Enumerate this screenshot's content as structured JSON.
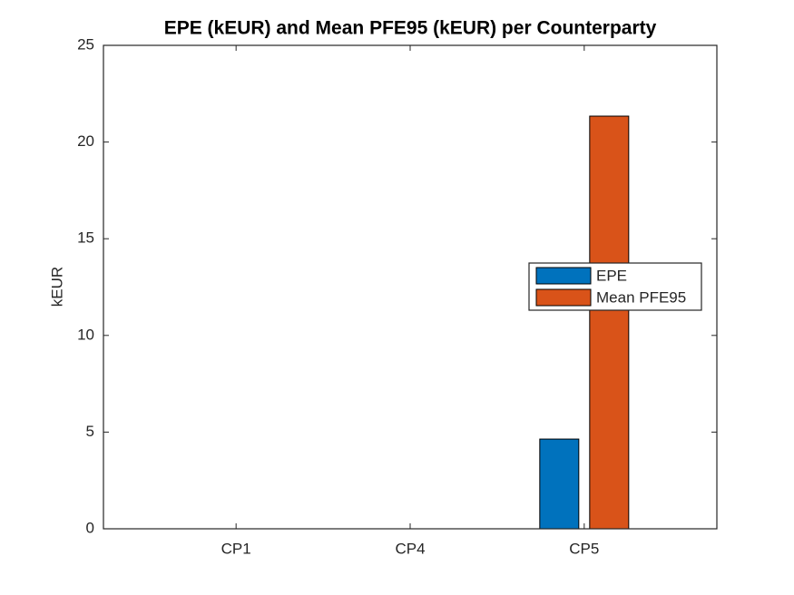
{
  "chart_data": {
    "type": "bar",
    "title": "EPE (kEUR) and Mean PFE95 (kEUR) per Counterparty",
    "y_label": "kEUR",
    "categories": [
      "CP1",
      "CP4",
      "CP5"
    ],
    "series": [
      {
        "name": "EPE",
        "color": "#0072bd",
        "values": [
          0,
          0,
          4.64
        ]
      },
      {
        "name": "Mean PFE95",
        "color": "#d95319",
        "values": [
          0,
          0,
          21.34
        ]
      }
    ],
    "ylim": [
      0,
      25
    ],
    "yticks": [
      0,
      5,
      10,
      15,
      20,
      25
    ],
    "grid": false,
    "legend": "right"
  }
}
